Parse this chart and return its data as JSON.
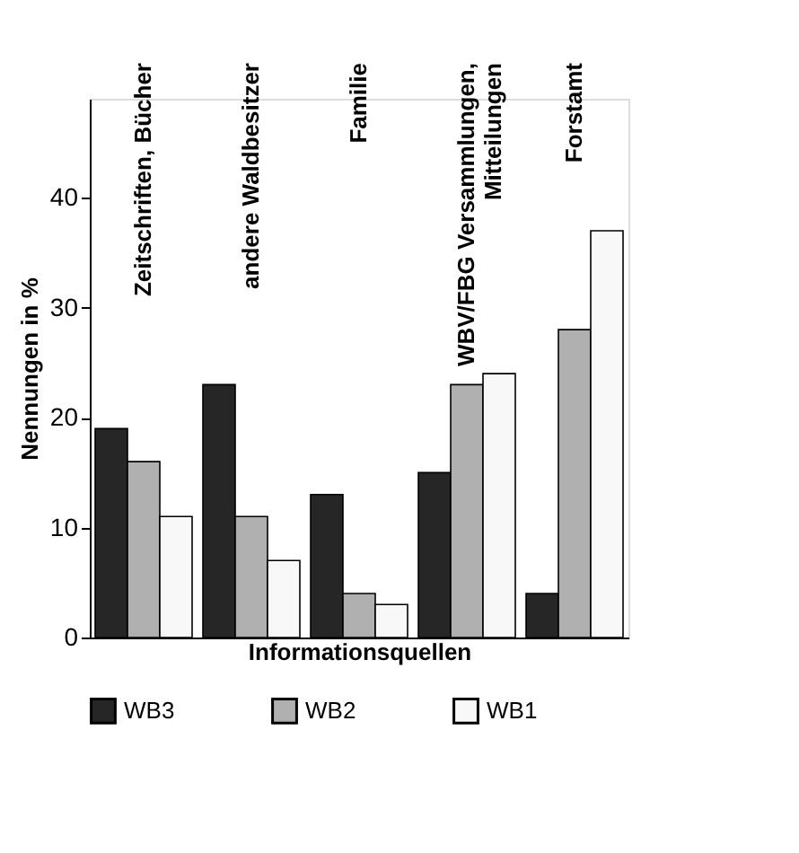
{
  "chart_data": {
    "type": "bar",
    "xlabel": "Informationsquellen",
    "ylabel": "Nennungen in %",
    "categories": [
      "Zeitschriften, Bücher",
      "andere Waldbesitzer",
      "Familie",
      "WBV/FBG Versammlungen,\nMitteilungen",
      "Forstamt"
    ],
    "series": [
      {
        "name": "WB3",
        "color": "#262626",
        "values": [
          19,
          23,
          13,
          15,
          4
        ]
      },
      {
        "name": "WB2",
        "color": "#b0b0b0",
        "values": [
          16,
          11,
          4,
          23,
          28
        ]
      },
      {
        "name": "WB1",
        "color": "#f8f8f8",
        "values": [
          11,
          7,
          3,
          24,
          37
        ]
      }
    ],
    "ylim": [
      0,
      49
    ],
    "yticks": [
      0,
      10,
      20,
      30,
      40
    ],
    "grid": false,
    "legend": "bottom"
  }
}
